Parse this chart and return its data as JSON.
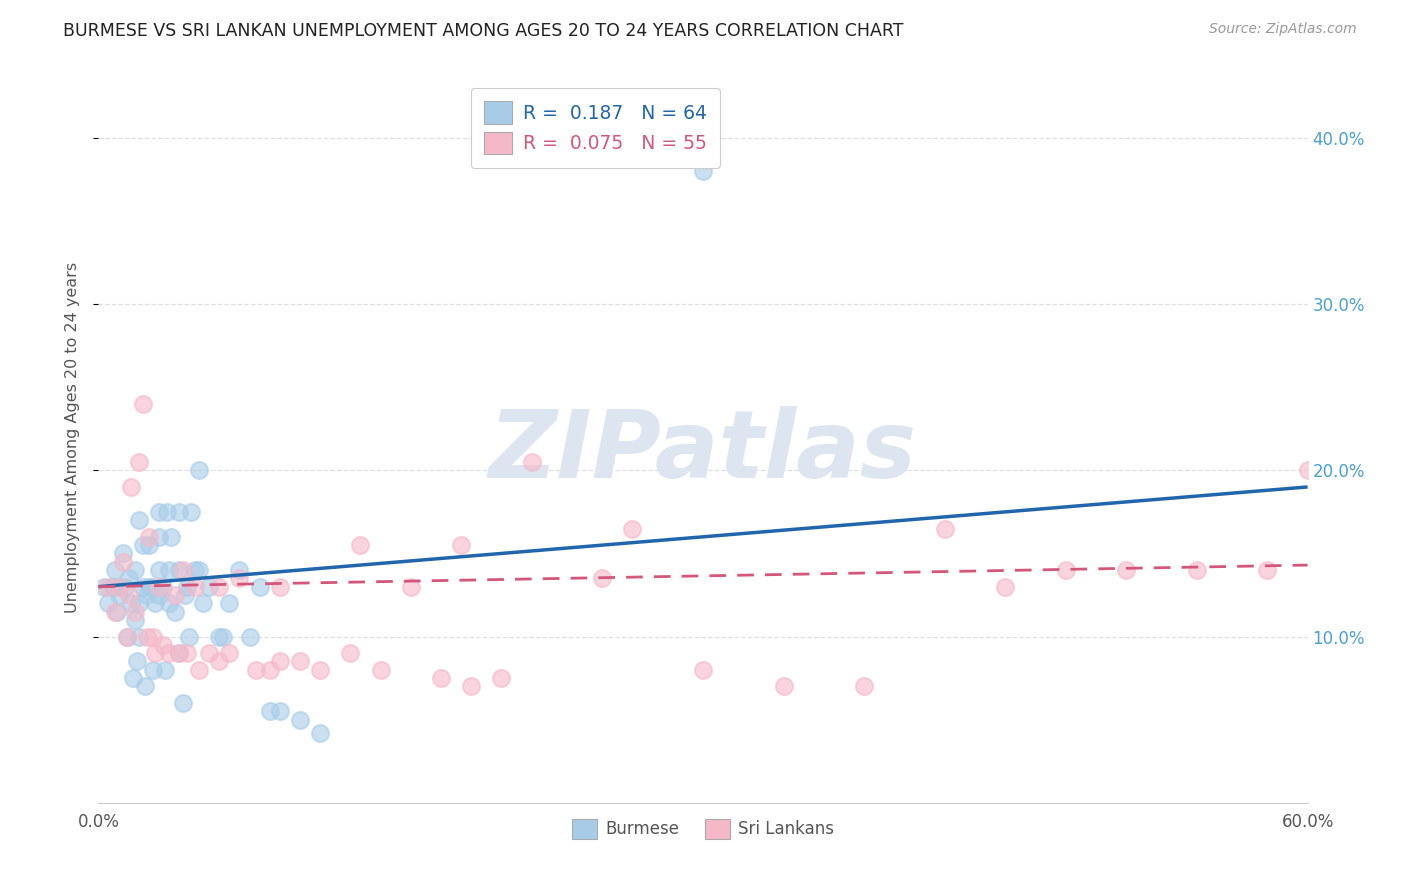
{
  "title": "BURMESE VS SRI LANKAN UNEMPLOYMENT AMONG AGES 20 TO 24 YEARS CORRELATION CHART",
  "source": "Source: ZipAtlas.com",
  "ylabel": "Unemployment Among Ages 20 to 24 years",
  "xlim": [
    0.0,
    0.6
  ],
  "ylim": [
    0.0,
    0.44
  ],
  "xticks": [
    0.0,
    0.1,
    0.2,
    0.3,
    0.4,
    0.5,
    0.6
  ],
  "yticks": [
    0.1,
    0.2,
    0.3,
    0.4
  ],
  "xtick_labels": [
    "0.0%",
    "",
    "",
    "",
    "",
    "",
    "60.0%"
  ],
  "ytick_labels_right": [
    "10.0%",
    "20.0%",
    "30.0%",
    "40.0%"
  ],
  "legend1_text": "R =  0.187   N = 64",
  "legend2_text": "R =  0.075   N = 55",
  "blue_dot_color": "#a8cce8",
  "pink_dot_color": "#f5b8c8",
  "blue_line_color": "#2166ac",
  "pink_line_color": "#d4567a",
  "watermark": "ZIPatlas",
  "blue_scatter_x": [
    0.003,
    0.005,
    0.007,
    0.008,
    0.009,
    0.01,
    0.01,
    0.012,
    0.013,
    0.014,
    0.015,
    0.016,
    0.017,
    0.018,
    0.018,
    0.019,
    0.02,
    0.02,
    0.02,
    0.022,
    0.022,
    0.023,
    0.024,
    0.025,
    0.025,
    0.026,
    0.027,
    0.028,
    0.03,
    0.03,
    0.03,
    0.03,
    0.032,
    0.033,
    0.034,
    0.035,
    0.035,
    0.036,
    0.038,
    0.04,
    0.04,
    0.04,
    0.042,
    0.043,
    0.044,
    0.045,
    0.046,
    0.048,
    0.05,
    0.05,
    0.052,
    0.055,
    0.06,
    0.062,
    0.065,
    0.07,
    0.075,
    0.08,
    0.085,
    0.09,
    0.1,
    0.11,
    0.25,
    0.3
  ],
  "blue_scatter_y": [
    0.13,
    0.12,
    0.13,
    0.14,
    0.115,
    0.13,
    0.125,
    0.15,
    0.13,
    0.1,
    0.135,
    0.12,
    0.075,
    0.11,
    0.14,
    0.085,
    0.1,
    0.12,
    0.17,
    0.13,
    0.155,
    0.07,
    0.125,
    0.13,
    0.155,
    0.13,
    0.08,
    0.12,
    0.125,
    0.14,
    0.16,
    0.175,
    0.13,
    0.08,
    0.175,
    0.12,
    0.14,
    0.16,
    0.115,
    0.09,
    0.14,
    0.175,
    0.06,
    0.125,
    0.13,
    0.1,
    0.175,
    0.14,
    0.14,
    0.2,
    0.12,
    0.13,
    0.1,
    0.1,
    0.12,
    0.14,
    0.1,
    0.13,
    0.055,
    0.055,
    0.05,
    0.042,
    0.42,
    0.38
  ],
  "pink_scatter_x": [
    0.005,
    0.008,
    0.01,
    0.012,
    0.014,
    0.015,
    0.016,
    0.018,
    0.02,
    0.022,
    0.024,
    0.025,
    0.027,
    0.028,
    0.03,
    0.032,
    0.035,
    0.038,
    0.04,
    0.042,
    0.044,
    0.048,
    0.05,
    0.055,
    0.06,
    0.065,
    0.07,
    0.078,
    0.085,
    0.09,
    0.1,
    0.11,
    0.125,
    0.14,
    0.155,
    0.17,
    0.185,
    0.2,
    0.215,
    0.25,
    0.265,
    0.3,
    0.34,
    0.38,
    0.42,
    0.45,
    0.48,
    0.51,
    0.545,
    0.58,
    0.6,
    0.18,
    0.13,
    0.09,
    0.06
  ],
  "pink_scatter_y": [
    0.13,
    0.115,
    0.13,
    0.145,
    0.1,
    0.125,
    0.19,
    0.115,
    0.205,
    0.24,
    0.1,
    0.16,
    0.1,
    0.09,
    0.13,
    0.095,
    0.09,
    0.125,
    0.09,
    0.14,
    0.09,
    0.13,
    0.08,
    0.09,
    0.13,
    0.09,
    0.135,
    0.08,
    0.08,
    0.13,
    0.085,
    0.08,
    0.09,
    0.08,
    0.13,
    0.075,
    0.07,
    0.075,
    0.205,
    0.135,
    0.165,
    0.08,
    0.07,
    0.07,
    0.165,
    0.13,
    0.14,
    0.14,
    0.14,
    0.14,
    0.2,
    0.155,
    0.155,
    0.085,
    0.085
  ],
  "blue_line_x": [
    0.0,
    0.6
  ],
  "blue_line_y": [
    0.13,
    0.19
  ],
  "pink_line_x": [
    0.0,
    0.6
  ],
  "pink_line_y": [
    0.13,
    0.143
  ],
  "background_color": "#ffffff",
  "grid_color": "#e0e0e0",
  "figsize": [
    14.06,
    8.92
  ],
  "dpi": 100
}
